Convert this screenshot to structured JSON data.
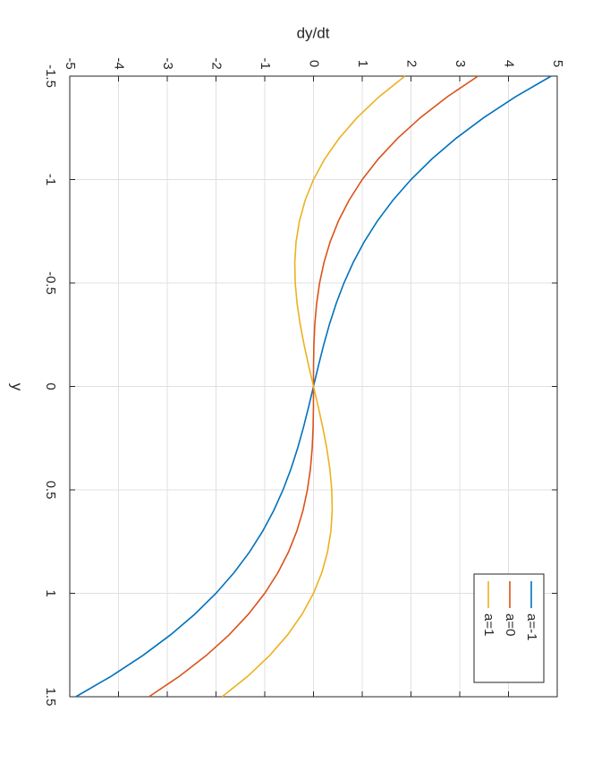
{
  "chart_data": {
    "type": "line",
    "xlabel": "y",
    "ylabel": "dy/dt",
    "x": [
      -1.5,
      -1.4,
      -1.3,
      -1.2,
      -1.1,
      -1,
      -0.9,
      -0.8,
      -0.7,
      -0.6,
      -0.5,
      -0.4,
      -0.3,
      -0.2,
      -0.1,
      0,
      0.1,
      0.2,
      0.3,
      0.4,
      0.5,
      0.6,
      0.7,
      0.8,
      0.9,
      1,
      1.1,
      1.2,
      1.3,
      1.4,
      1.5
    ],
    "series": [
      {
        "name": "a=-1",
        "color": "#0072bd",
        "values": [
          4.875,
          4.144,
          3.497,
          2.928,
          2.431,
          2,
          1.629,
          1.312,
          1.043,
          0.816,
          0.625,
          0.464,
          0.327,
          0.208,
          0.101,
          0,
          -0.101,
          -0.208,
          -0.327,
          -0.464,
          -0.625,
          -0.816,
          -1.043,
          -1.312,
          -1.629,
          -2,
          -2.431,
          -2.928,
          -3.497,
          -4.144,
          -4.875
        ]
      },
      {
        "name": "a=0",
        "color": "#d95319",
        "values": [
          3.375,
          2.744,
          2.197,
          1.728,
          1.331,
          1,
          0.729,
          0.512,
          0.343,
          0.216,
          0.125,
          0.064,
          0.027,
          0.008,
          0.001,
          0,
          -0.001,
          -0.008,
          -0.027,
          -0.064,
          -0.125,
          -0.216,
          -0.343,
          -0.512,
          -0.729,
          -1,
          -1.331,
          -1.728,
          -2.197,
          -2.744,
          -3.375
        ]
      },
      {
        "name": "a=1",
        "color": "#edb120",
        "values": [
          1.875,
          1.344,
          0.897,
          0.528,
          0.231,
          0,
          -0.171,
          -0.288,
          -0.357,
          -0.384,
          -0.375,
          -0.336,
          -0.273,
          -0.192,
          -0.099,
          0,
          0.099,
          0.192,
          0.273,
          0.336,
          0.375,
          0.384,
          0.357,
          0.288,
          0.171,
          0,
          -0.231,
          -0.528,
          -0.897,
          -1.344,
          -1.875
        ]
      }
    ],
    "xlim": [
      -1.5,
      1.5
    ],
    "xticks": [
      -1.5,
      -1,
      -0.5,
      0,
      0.5,
      1,
      1.5
    ],
    "ylim": [
      -5,
      5
    ],
    "yticks": [
      -5,
      -4,
      -3,
      -2,
      -1,
      0,
      1,
      2,
      3,
      4,
      5
    ],
    "grid": true,
    "legend": "lower right"
  }
}
